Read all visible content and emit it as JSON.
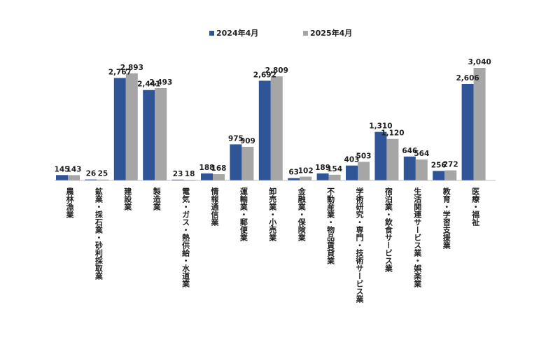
{
  "chart_data": {
    "type": "bar",
    "title": "",
    "xlabel": "",
    "ylabel": "",
    "ylim": [
      0,
      3300
    ],
    "legend_position": "top-center",
    "grid": false,
    "categories": [
      "農林漁業",
      "鉱業・採石業・砂利採取業",
      "建設業",
      "製造業",
      "電気・ガス・熱供給・水道業",
      "情報通信業",
      "運輸業・郵便業",
      "卸売業・小売業",
      "金融業・保険業",
      "不動産業・物品賃貸業",
      "学術研究・専門・技術サービス業",
      "宿泊業・飲食サービス業",
      "生活関連サービス業・娯楽業",
      "教育・学習支援業",
      "医療・福祉"
    ],
    "series": [
      {
        "name": "2024年4月",
        "color": "#2f5597",
        "values": [
          145,
          26,
          2767,
          2441,
          23,
          188,
          975,
          2692,
          63,
          189,
          403,
          1310,
          646,
          256,
          2606
        ],
        "labels": [
          "145",
          "26",
          "2,767",
          "2,441",
          "23",
          "188",
          "975",
          "2,692",
          "63",
          "189",
          "403",
          "1,310",
          "646",
          "256",
          "2,606"
        ]
      },
      {
        "name": "2025年4月",
        "color": "#a6a6a6",
        "values": [
          143,
          25,
          2893,
          2493,
          18,
          168,
          909,
          2809,
          102,
          154,
          503,
          1120,
          564,
          272,
          3040
        ],
        "labels": [
          "143",
          "25",
          "2,893",
          "2,493",
          "18",
          "168",
          "909",
          "2,809",
          "102",
          "154",
          "503",
          "1,120",
          "564",
          "272",
          "3,040"
        ]
      }
    ]
  }
}
